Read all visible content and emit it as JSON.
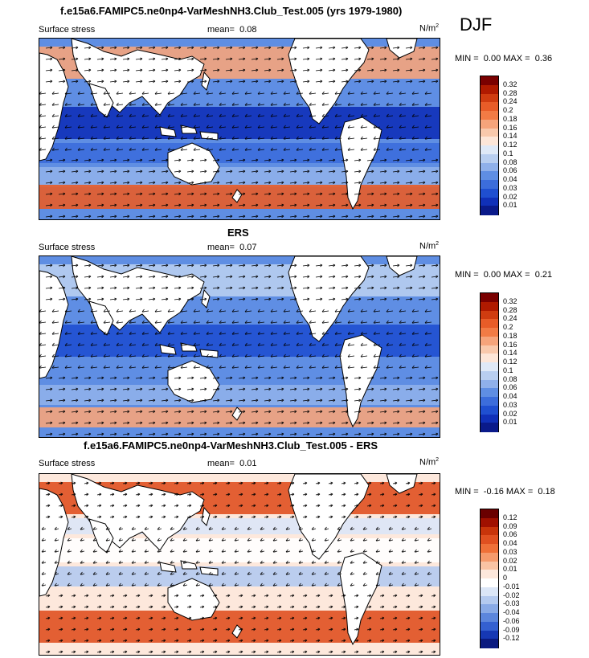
{
  "season": "DJF",
  "panels": [
    {
      "title": "f.e15a6.FAMIPC5.ne0np4-VarMeshNH3.Club_Test.005 (yrs 1979-1980)",
      "variable": "Surface stress",
      "mean_label": "mean=",
      "mean_value": "0.08",
      "units": "N/m",
      "units_exp": "2",
      "min_label": "MIN =",
      "min_value": "0.00",
      "max_label": "MAX =",
      "max_value": "0.36",
      "scale": "sequential",
      "levels": [
        "0.32",
        "0.28",
        "0.24",
        "0.2",
        "0.18",
        "0.16",
        "0.14",
        "0.12",
        "0.1",
        "0.08",
        "0.06",
        "0.04",
        "0.03",
        "0.02",
        "0.01"
      ]
    },
    {
      "title": "ERS",
      "variable": "Surface stress",
      "mean_label": "mean=",
      "mean_value": "0.07",
      "units": "N/m",
      "units_exp": "2",
      "min_label": "MIN =",
      "min_value": "0.00",
      "max_label": "MAX =",
      "max_value": "0.21",
      "scale": "sequential",
      "levels": [
        "0.32",
        "0.28",
        "0.24",
        "0.2",
        "0.18",
        "0.16",
        "0.14",
        "0.12",
        "0.1",
        "0.08",
        "0.06",
        "0.04",
        "0.03",
        "0.02",
        "0.01"
      ]
    },
    {
      "title": "f.e15a6.FAMIPC5.ne0np4-VarMeshNH3.Club_Test.005 - ERS",
      "variable": "Surface stress",
      "mean_label": "mean=",
      "mean_value": "0.01",
      "units": "N/m",
      "units_exp": "2",
      "min_label": "MIN =",
      "min_value": "-0.16",
      "max_label": "MAX =",
      "max_value": "0.18",
      "scale": "diverging",
      "levels": [
        "0.12",
        "0.09",
        "0.06",
        "0.04",
        "0.03",
        "0.02",
        "0.01",
        "0",
        "-0.01",
        "-0.02",
        "-0.03",
        "-0.04",
        "-0.06",
        "-0.09",
        "-0.12"
      ]
    }
  ],
  "colors": {
    "sequential": [
      "#7a0000",
      "#b01a00",
      "#d03c10",
      "#e85c28",
      "#f27b45",
      "#f6a47b",
      "#f9c9ac",
      "#fde6d8",
      "#dfe9f7",
      "#b8cef0",
      "#8fb0ea",
      "#5f8ee3",
      "#3c6ddb",
      "#1f4fd0",
      "#1030b8",
      "#0a1a8a"
    ],
    "diverging": [
      "#6a0000",
      "#a01000",
      "#c8340a",
      "#e05020",
      "#ef7038",
      "#f59a6c",
      "#f9c3a4",
      "#fde8dc",
      "#ffffff",
      "#dbe6f7",
      "#b4caef",
      "#89aae6",
      "#5c86dc",
      "#3460d0",
      "#1638b4",
      "#0a1a80"
    ],
    "land": "#ffffff",
    "coast": "#000000",
    "arrow": "#000000"
  }
}
